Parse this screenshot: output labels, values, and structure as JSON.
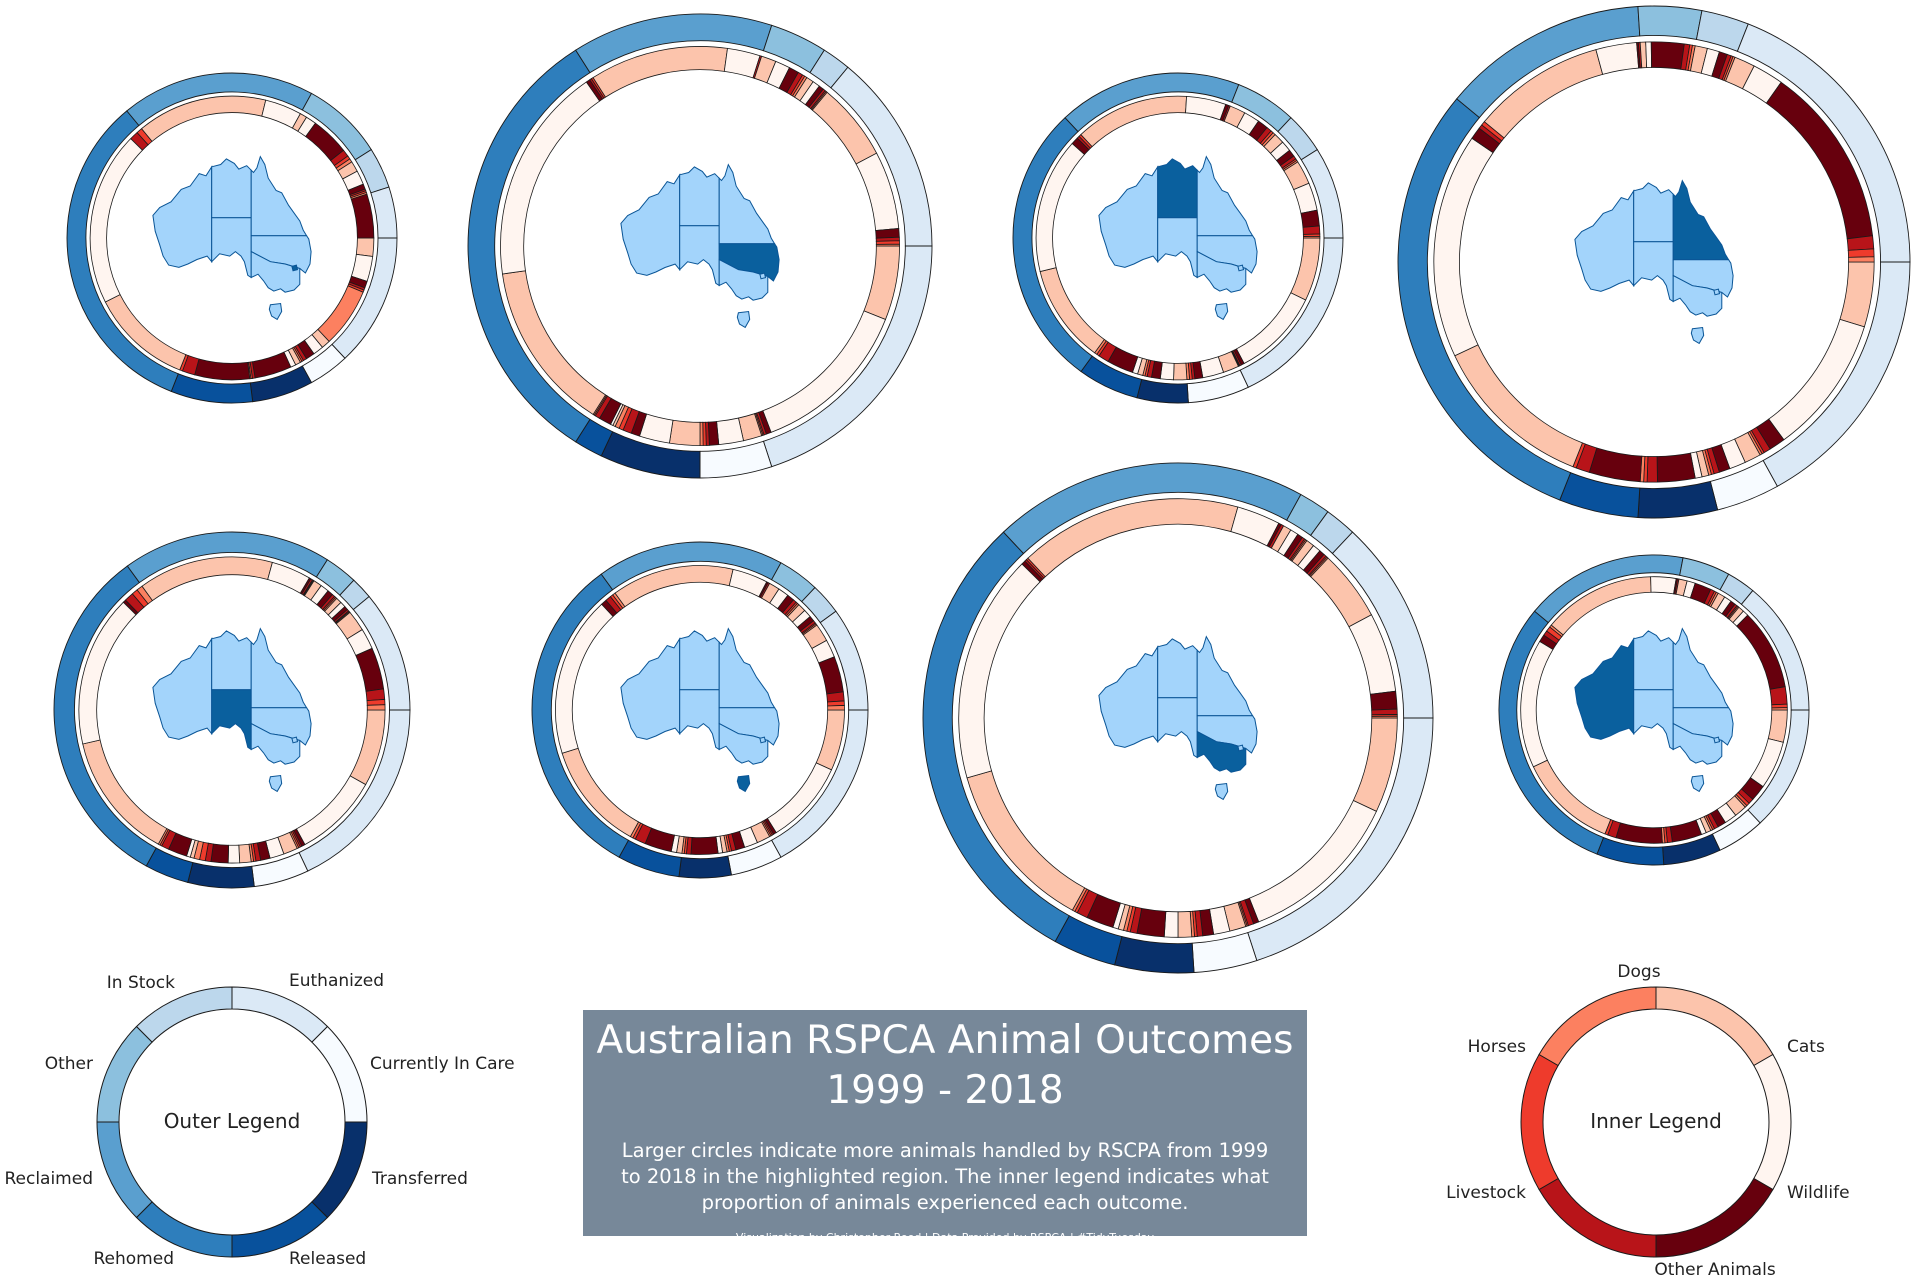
{
  "title": {
    "line1": "Australian RSPCA Animal Outcomes",
    "line2": "1999 - 2018",
    "subtitle": "Larger circles indicate more animals handled by RSCPA from 1999 to 2018 in the highlighted region. The inner legend indicates what proportion of animals experienced each outcome.",
    "credit": "Visualization by Christopher Reed | Data Provided by RSPCA | #TidyTuesday"
  },
  "colors": {
    "outcomes": {
      "Euthanized": "#dbe9f6",
      "Currently In Care": "#f7fbff",
      "Transferred": "#08306b",
      "Released": "#08519c",
      "Rehomed": "#2e7ebc",
      "Reclaimed": "#5a9fcf",
      "Other": "#8cc0de",
      "In Stock": "#bcd7ec"
    },
    "animals": {
      "Dogs": "#fcc4ac",
      "Cats": "#fff5f0",
      "Wildlife": "#67000d",
      "Other Animals": "#b81419",
      "Livestock": "#ee3b2c",
      "Horses": "#fc8060"
    },
    "map_base": "#a3d4fb",
    "map_highlight": "#0a609e",
    "map_border": "#0a5596",
    "title_bg": "#778899"
  },
  "outer_legend": {
    "center_label": "Outer Legend",
    "labels": [
      "Euthanized",
      "Currently In Care",
      "Transferred",
      "Released",
      "Rehomed",
      "Reclaimed",
      "Other",
      "In Stock"
    ]
  },
  "inner_legend": {
    "center_label": "Inner Legend",
    "labels": [
      "Dogs",
      "Cats",
      "Wildlife",
      "Other Animals",
      "Livestock",
      "Horses"
    ]
  },
  "chart_data": {
    "type": "donut",
    "outer_ring": "share of animals by outcome",
    "inner_ring": "share of animals by animal type within each outcome",
    "regions": [
      {
        "highlight": "ACT",
        "relative_size": 0.62,
        "outcomes": [
          {
            "name": "Euthanized",
            "share": 0.13,
            "animals": [
              0.16,
              0.22,
              0.06,
              0.02,
              0.02,
              0.52
            ]
          },
          {
            "name": "Currently In Care",
            "share": 0.04,
            "animals": [
              0.25,
              0.3,
              0.25,
              0.1,
              0.05,
              0.05
            ]
          },
          {
            "name": "Transferred",
            "share": 0.06,
            "animals": [
              0.1,
              0.1,
              0.7,
              0.05,
              0.03,
              0.02
            ]
          },
          {
            "name": "Released",
            "share": 0.08,
            "animals": [
              0.0,
              0.0,
              0.78,
              0.18,
              0.04,
              0.0
            ]
          },
          {
            "name": "Rehomed",
            "share": 0.33,
            "animals": [
              0.35,
              0.6,
              0.0,
              0.03,
              0.02,
              0.0
            ]
          },
          {
            "name": "Reclaimed",
            "share": 0.19,
            "animals": [
              0.78,
              0.22,
              0.0,
              0.0,
              0.0,
              0.0
            ]
          },
          {
            "name": "Other",
            "share": 0.08,
            "animals": [
              0.1,
              0.15,
              0.55,
              0.1,
              0.05,
              0.05
            ]
          },
          {
            "name": "In Stock",
            "share": 0.04,
            "animals": [
              0.3,
              0.4,
              0.15,
              0.05,
              0.05,
              0.05
            ]
          },
          {
            "name": "Euthanized",
            "share": 0.05,
            "animals": [
              0.0,
              0.0,
              1.0,
              0.0,
              0.0,
              0.0
            ]
          }
        ]
      },
      {
        "highlight": "NSW",
        "relative_size": 0.86,
        "outcomes": [
          {
            "name": "Euthanized",
            "share": 0.2,
            "animals": [
              0.3,
              0.66,
              0.02,
              0.01,
              0.005,
              0.005
            ]
          },
          {
            "name": "Currently In Care",
            "share": 0.05,
            "animals": [
              0.3,
              0.4,
              0.15,
              0.05,
              0.05,
              0.05
            ]
          },
          {
            "name": "Transferred",
            "share": 0.07,
            "animals": [
              0.35,
              0.35,
              0.1,
              0.1,
              0.05,
              0.05
            ]
          },
          {
            "name": "Released",
            "share": 0.02,
            "animals": [
              0.1,
              0.1,
              0.5,
              0.2,
              0.05,
              0.05
            ]
          },
          {
            "name": "Rehomed",
            "share": 0.32,
            "animals": [
              0.43,
              0.55,
              0.01,
              0.005,
              0.005,
              0.0
            ]
          },
          {
            "name": "Reclaimed",
            "share": 0.14,
            "animals": [
              0.8,
              0.19,
              0.0,
              0.01,
              0.0,
              0.0
            ]
          },
          {
            "name": "Other",
            "share": 0.04,
            "animals": [
              0.3,
              0.3,
              0.2,
              0.1,
              0.05,
              0.05
            ]
          },
          {
            "name": "In Stock",
            "share": 0.02,
            "animals": [
              0.3,
              0.3,
              0.2,
              0.1,
              0.05,
              0.05
            ]
          },
          {
            "name": "Euthanized",
            "share": 0.14,
            "animals": [
              0.45,
              0.45,
              0.05,
              0.02,
              0.02,
              0.01
            ]
          }
        ]
      },
      {
        "highlight": "NT",
        "relative_size": 0.62,
        "outcomes": [
          {
            "name": "Euthanized",
            "share": 0.18,
            "animals": [
              0.4,
              0.56,
              0.02,
              0.01,
              0.005,
              0.005
            ]
          },
          {
            "name": "Currently In Care",
            "share": 0.06,
            "animals": [
              0.3,
              0.4,
              0.15,
              0.05,
              0.05,
              0.05
            ]
          },
          {
            "name": "Transferred",
            "share": 0.05,
            "animals": [
              0.3,
              0.3,
              0.2,
              0.1,
              0.05,
              0.05
            ]
          },
          {
            "name": "Released",
            "share": 0.06,
            "animals": [
              0.1,
              0.1,
              0.5,
              0.2,
              0.05,
              0.05
            ]
          },
          {
            "name": "Rehomed",
            "share": 0.28,
            "animals": [
              0.4,
              0.55,
              0.03,
              0.01,
              0.01,
              0.0
            ]
          },
          {
            "name": "Reclaimed",
            "share": 0.18,
            "animals": [
              0.72,
              0.25,
              0.02,
              0.01,
              0.0,
              0.0
            ]
          },
          {
            "name": "Other",
            "share": 0.06,
            "animals": [
              0.3,
              0.3,
              0.2,
              0.1,
              0.05,
              0.05
            ]
          },
          {
            "name": "In Stock",
            "share": 0.04,
            "animals": [
              0.3,
              0.3,
              0.2,
              0.1,
              0.05,
              0.05
            ]
          },
          {
            "name": "Euthanized",
            "share": 0.09,
            "animals": [
              0.3,
              0.35,
              0.2,
              0.1,
              0.03,
              0.02
            ]
          }
        ]
      },
      {
        "highlight": "QLD",
        "relative_size": 0.97,
        "outcomes": [
          {
            "name": "Euthanized",
            "share": 0.17,
            "animals": [
              0.28,
              0.6,
              0.07,
              0.03,
              0.01,
              0.01
            ]
          },
          {
            "name": "Currently In Care",
            "share": 0.04,
            "animals": [
              0.3,
              0.3,
              0.2,
              0.1,
              0.05,
              0.05
            ]
          },
          {
            "name": "Transferred",
            "share": 0.05,
            "animals": [
              0.1,
              0.1,
              0.55,
              0.15,
              0.05,
              0.05
            ]
          },
          {
            "name": "Released",
            "share": 0.05,
            "animals": [
              0.0,
              0.0,
              0.75,
              0.2,
              0.05,
              0.0
            ]
          },
          {
            "name": "Rehomed",
            "share": 0.3,
            "animals": [
              0.4,
              0.55,
              0.03,
              0.01,
              0.01,
              0.0
            ]
          },
          {
            "name": "Reclaimed",
            "share": 0.13,
            "animals": [
              0.75,
              0.23,
              0.01,
              0.01,
              0.0,
              0.0
            ]
          },
          {
            "name": "Other",
            "share": 0.04,
            "animals": [
              0.1,
              0.1,
              0.6,
              0.1,
              0.05,
              0.05
            ]
          },
          {
            "name": "In Stock",
            "share": 0.03,
            "animals": [
              0.3,
              0.3,
              0.2,
              0.1,
              0.05,
              0.05
            ]
          },
          {
            "name": "Euthanized",
            "share": 0.19,
            "animals": [
              0.08,
              0.12,
              0.7,
              0.05,
              0.03,
              0.02
            ]
          }
        ]
      },
      {
        "highlight": "SA",
        "relative_size": 0.66,
        "outcomes": [
          {
            "name": "Euthanized",
            "share": 0.18,
            "animals": [
              0.45,
              0.5,
              0.02,
              0.01,
              0.01,
              0.01
            ]
          },
          {
            "name": "Currently In Care",
            "share": 0.05,
            "animals": [
              0.3,
              0.3,
              0.2,
              0.1,
              0.05,
              0.05
            ]
          },
          {
            "name": "Transferred",
            "share": 0.06,
            "animals": [
              0.2,
              0.2,
              0.3,
              0.1,
              0.1,
              0.1
            ]
          },
          {
            "name": "Released",
            "share": 0.04,
            "animals": [
              0.1,
              0.1,
              0.5,
              0.2,
              0.05,
              0.05
            ]
          },
          {
            "name": "Rehomed",
            "share": 0.32,
            "animals": [
              0.42,
              0.5,
              0.01,
              0.03,
              0.02,
              0.02
            ]
          },
          {
            "name": "Reclaimed",
            "share": 0.19,
            "animals": [
              0.75,
              0.22,
              0.01,
              0.01,
              0.005,
              0.005
            ]
          },
          {
            "name": "Other",
            "share": 0.03,
            "animals": [
              0.3,
              0.3,
              0.2,
              0.1,
              0.05,
              0.05
            ]
          },
          {
            "name": "In Stock",
            "share": 0.02,
            "animals": [
              0.3,
              0.3,
              0.2,
              0.1,
              0.05,
              0.05
            ]
          },
          {
            "name": "Euthanized",
            "share": 0.11,
            "animals": [
              0.2,
              0.2,
              0.4,
              0.1,
              0.05,
              0.05
            ]
          }
        ]
      },
      {
        "highlight": "TAS",
        "relative_size": 0.62,
        "outcomes": [
          {
            "name": "Euthanized",
            "share": 0.17,
            "animals": [
              0.4,
              0.55,
              0.02,
              0.01,
              0.01,
              0.01
            ]
          },
          {
            "name": "Currently In Care",
            "share": 0.05,
            "animals": [
              0.3,
              0.3,
              0.2,
              0.1,
              0.05,
              0.05
            ]
          },
          {
            "name": "Transferred",
            "share": 0.05,
            "animals": [
              0.1,
              0.1,
              0.6,
              0.1,
              0.05,
              0.05
            ]
          },
          {
            "name": "Released",
            "share": 0.06,
            "animals": [
              0.1,
              0.1,
              0.5,
              0.2,
              0.05,
              0.05
            ]
          },
          {
            "name": "Rehomed",
            "share": 0.32,
            "animals": [
              0.38,
              0.56,
              0.02,
              0.02,
              0.01,
              0.01
            ]
          },
          {
            "name": "Reclaimed",
            "share": 0.18,
            "animals": [
              0.76,
              0.22,
              0.01,
              0.01,
              0.0,
              0.0
            ]
          },
          {
            "name": "Other",
            "share": 0.04,
            "animals": [
              0.3,
              0.3,
              0.2,
              0.1,
              0.05,
              0.05
            ]
          },
          {
            "name": "In Stock",
            "share": 0.03,
            "animals": [
              0.3,
              0.3,
              0.2,
              0.1,
              0.05,
              0.05
            ]
          },
          {
            "name": "Euthanized",
            "share": 0.1,
            "animals": [
              0.2,
              0.2,
              0.4,
              0.1,
              0.05,
              0.05
            ]
          }
        ]
      },
      {
        "highlight": "VIC",
        "relative_size": 0.93,
        "outcomes": [
          {
            "name": "Euthanized",
            "share": 0.2,
            "animals": [
              0.35,
              0.6,
              0.02,
              0.02,
              0.005,
              0.005
            ]
          },
          {
            "name": "Currently In Care",
            "share": 0.04,
            "animals": [
              0.3,
              0.3,
              0.2,
              0.1,
              0.05,
              0.05
            ]
          },
          {
            "name": "Transferred",
            "share": 0.05,
            "animals": [
              0.2,
              0.2,
              0.4,
              0.1,
              0.05,
              0.05
            ]
          },
          {
            "name": "Released",
            "share": 0.04,
            "animals": [
              0.1,
              0.1,
              0.5,
              0.2,
              0.05,
              0.05
            ]
          },
          {
            "name": "Rehomed",
            "share": 0.3,
            "animals": [
              0.42,
              0.56,
              0.01,
              0.005,
              0.005,
              0.0
            ]
          },
          {
            "name": "Reclaimed",
            "share": 0.2,
            "animals": [
              0.82,
              0.16,
              0.01,
              0.01,
              0.0,
              0.0
            ]
          },
          {
            "name": "Other",
            "share": 0.02,
            "animals": [
              0.3,
              0.3,
              0.2,
              0.1,
              0.05,
              0.05
            ]
          },
          {
            "name": "In Stock",
            "share": 0.02,
            "animals": [
              0.3,
              0.3,
              0.2,
              0.1,
              0.05,
              0.05
            ]
          },
          {
            "name": "Euthanized",
            "share": 0.13,
            "animals": [
              0.4,
              0.45,
              0.1,
              0.03,
              0.01,
              0.01
            ]
          }
        ]
      },
      {
        "highlight": "WA",
        "relative_size": 0.58,
        "outcomes": [
          {
            "name": "Euthanized",
            "share": 0.13,
            "animals": [
              0.3,
              0.45,
              0.15,
              0.05,
              0.03,
              0.02
            ]
          },
          {
            "name": "Currently In Care",
            "share": 0.05,
            "animals": [
              0.3,
              0.3,
              0.2,
              0.1,
              0.05,
              0.05
            ]
          },
          {
            "name": "Transferred",
            "share": 0.06,
            "animals": [
              0.1,
              0.1,
              0.6,
              0.1,
              0.05,
              0.05
            ]
          },
          {
            "name": "Released",
            "share": 0.07,
            "animals": [
              0.0,
              0.0,
              0.8,
              0.15,
              0.05,
              0.0
            ]
          },
          {
            "name": "Rehomed",
            "share": 0.3,
            "animals": [
              0.4,
              0.52,
              0.03,
              0.02,
              0.02,
              0.01
            ]
          },
          {
            "name": "Reclaimed",
            "share": 0.17,
            "animals": [
              0.8,
              0.18,
              0.01,
              0.01,
              0.0,
              0.0
            ]
          },
          {
            "name": "Other",
            "share": 0.05,
            "animals": [
              0.2,
              0.2,
              0.4,
              0.1,
              0.05,
              0.05
            ]
          },
          {
            "name": "In Stock",
            "share": 0.03,
            "animals": [
              0.3,
              0.3,
              0.2,
              0.1,
              0.05,
              0.05
            ]
          },
          {
            "name": "Euthanized",
            "share": 0.14,
            "animals": [
              0.05,
              0.05,
              0.7,
              0.15,
              0.03,
              0.02
            ]
          }
        ]
      }
    ]
  }
}
